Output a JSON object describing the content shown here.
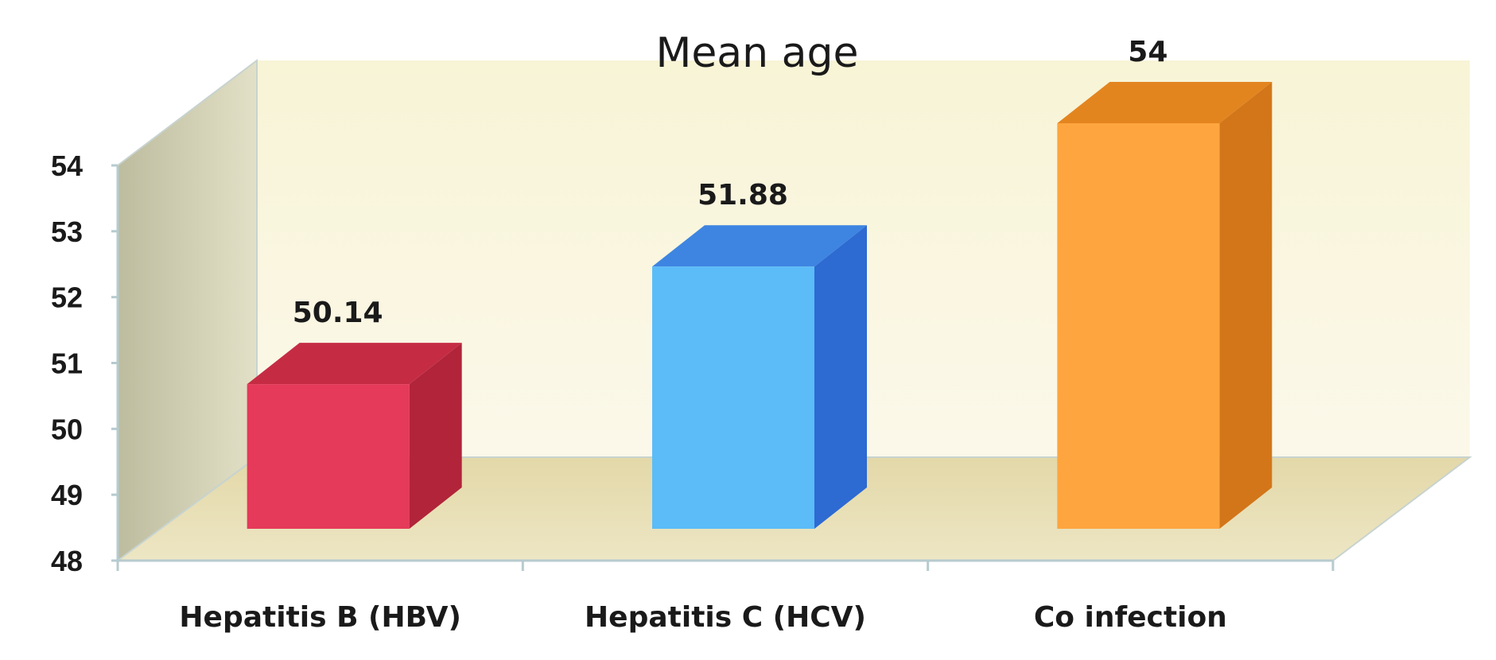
{
  "chart_data": {
    "type": "bar",
    "title": "Mean age",
    "categories": [
      "Hepatitis B (HBV)",
      "Hepatitis C (HCV)",
      "Co infection"
    ],
    "values": [
      50.14,
      51.88,
      54
    ],
    "value_labels": [
      "50.14",
      "51.88",
      "54"
    ],
    "ylim": [
      48,
      54
    ],
    "yticks": [
      "48",
      "49",
      "50",
      "51",
      "52",
      "53",
      "54"
    ],
    "xlabel": "",
    "ylabel": "",
    "grid": false,
    "legend": "none",
    "style": "3d",
    "colors": {
      "bars": [
        {
          "front": "#e53a5a",
          "top": "#c52c44",
          "side": "#b1243a"
        },
        {
          "front": "#5bbcf8",
          "top": "#3d85e1",
          "side": "#2d6ad2"
        },
        {
          "front": "#fea53f",
          "top": "#e3851f",
          "side": "#d27619"
        }
      ],
      "back_wall": "#f8f3d8",
      "side_wall": "#cfcdb0",
      "floor": "#e6dcae",
      "axis": "#b7cbcf"
    }
  }
}
